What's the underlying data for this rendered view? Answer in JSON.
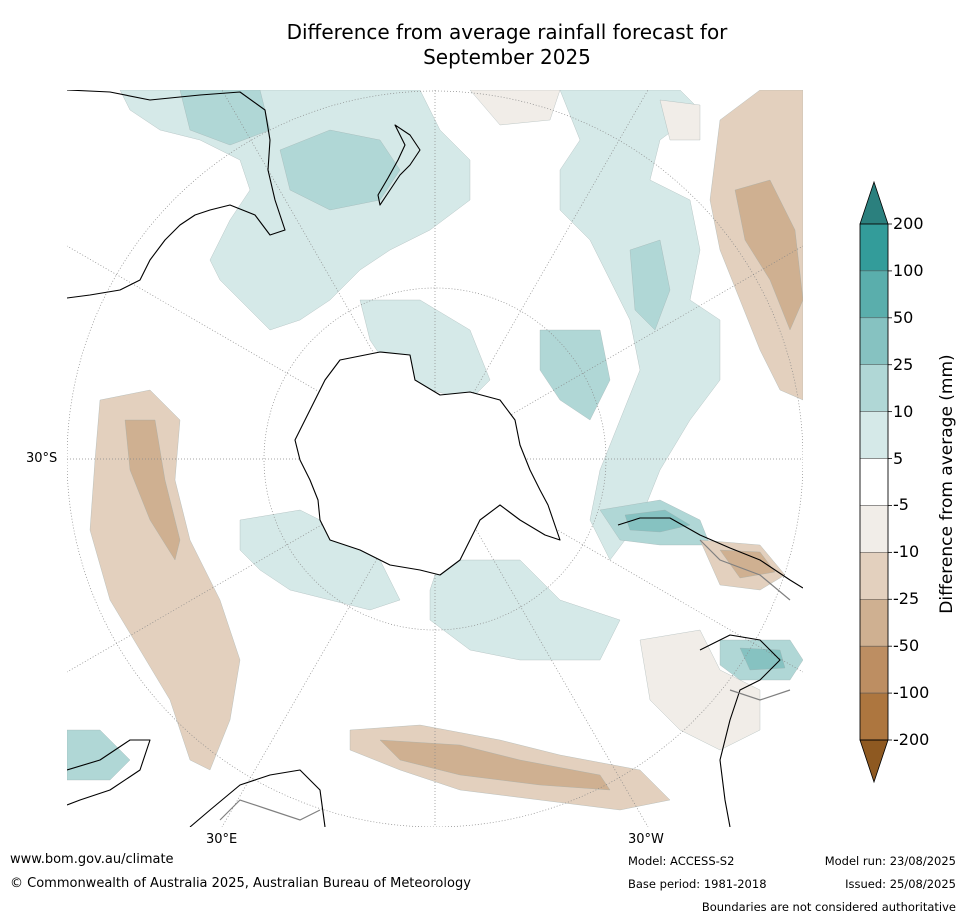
{
  "title": {
    "line1": "Difference from average rainfall forecast for",
    "line2": "September 2025"
  },
  "map": {
    "projection": "south-polar stereographic",
    "lat_label": "30°S",
    "lon_labels": {
      "east": "30°E",
      "west": "30°W"
    },
    "colors": {
      "wet_light": "#d5e9e8",
      "wet_mid": "#b0d7d6",
      "wet_strong": "#86c2c1",
      "dry_light": "#f1ede8",
      "dry_mid": "#e3d0be",
      "dry_strong": "#cfb091",
      "coastline": "#000000",
      "boundary": "#808080",
      "graticule": "#888888"
    }
  },
  "colorbar": {
    "title": "Difference from average (mm)",
    "ticks": [
      "200",
      "100",
      "50",
      "25",
      "10",
      "5",
      "-5",
      "-10",
      "-25",
      "-50",
      "-100",
      "-200"
    ],
    "colors": [
      "#2b807e",
      "#339c9a",
      "#5aaeac",
      "#86c2c1",
      "#b0d7d6",
      "#d5e9e8",
      "#ffffff",
      "#f1ede8",
      "#e3d0be",
      "#cfb091",
      "#bd8e62",
      "#ad763f",
      "#8e5921"
    ]
  },
  "footer": {
    "url": "www.bom.gov.au/climate",
    "copyright": "© Commonwealth of Australia 2025, Australian Bureau of Meteorology",
    "model": "Model: ACCESS-S2",
    "base_period": "Base period: 1981-2018",
    "model_run": "Model run: 23/08/2025",
    "issued": "Issued: 25/08/2025",
    "disclaimer": "Boundaries are not considered authoritative"
  }
}
